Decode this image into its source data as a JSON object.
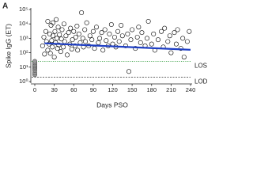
{
  "chart_data": {
    "type": "scatter",
    "panel_label": "A",
    "xlabel": "Days PSO",
    "ylabel": "Spike IgG (ET)",
    "xlim": [
      0,
      240
    ],
    "xticks": [
      0,
      30,
      60,
      90,
      120,
      150,
      180,
      210,
      240
    ],
    "ylim": [
      1,
      100000
    ],
    "log_y": true,
    "grid": false,
    "yticks": [
      {
        "value": 1,
        "label": "10⁰"
      },
      {
        "value": 10,
        "label": "10¹"
      },
      {
        "value": 100,
        "label": "10²"
      },
      {
        "value": 1000,
        "label": "10³"
      },
      {
        "value": 10000,
        "label": "10⁴"
      },
      {
        "value": 100000,
        "label": "10⁵"
      }
    ],
    "series": [
      {
        "color": "#999999",
        "marker": "filled",
        "x": [
          0,
          0,
          0,
          0,
          0,
          0,
          0,
          0,
          0
        ],
        "values": [
          3,
          4,
          6,
          8,
          10,
          12,
          15,
          20,
          25
        ]
      },
      {
        "color": "#000000",
        "marker": "open",
        "x": [
          12,
          14,
          15,
          17,
          18,
          20,
          20,
          22,
          23,
          24,
          25,
          26,
          27,
          28,
          28,
          30,
          31,
          32,
          33,
          34,
          35,
          36,
          37,
          38,
          40,
          41,
          42,
          44,
          45,
          46,
          48,
          50,
          52,
          54,
          55,
          57,
          58,
          60,
          62,
          63,
          65,
          66,
          68,
          70,
          72,
          74,
          75,
          77,
          78,
          80,
          83,
          85,
          88,
          90,
          92,
          95,
          98,
          100,
          103,
          105,
          108,
          110,
          113,
          115,
          118,
          120,
          123,
          125,
          128,
          130,
          133,
          135,
          140,
          143,
          145,
          148,
          150,
          155,
          158,
          160,
          163,
          165,
          170,
          173,
          175,
          180,
          183,
          185,
          190,
          195,
          198,
          200,
          205,
          208,
          210,
          215,
          218,
          220,
          225,
          228,
          230,
          235,
          238
        ],
        "values": [
          300,
          1200,
          80,
          3000,
          600,
          150,
          15000,
          400,
          2000,
          90,
          8000,
          700,
          250,
          12000,
          1500,
          50,
          3000,
          500,
          20000,
          1000,
          200,
          6000,
          350,
          1800,
          120,
          900,
          4000,
          250,
          10000,
          600,
          1500,
          70,
          2500,
          400,
          5000,
          180,
          800,
          3000,
          300,
          1200,
          7000,
          150,
          2000,
          500,
          60000,
          1000,
          250,
          4000,
          600,
          12000,
          300,
          1500,
          800,
          3000,
          200,
          6000,
          500,
          1000,
          2500,
          150,
          4000,
          700,
          300,
          2000,
          9000,
          400,
          1200,
          250,
          3000,
          600,
          8000,
          1500,
          300,
          2000,
          5,
          800,
          4000,
          200,
          1200,
          6000,
          500,
          2500,
          300,
          1000,
          15000,
          400,
          2000,
          150,
          800,
          3000,
          250,
          5000,
          600,
          1500,
          100,
          2500,
          400,
          4000,
          200,
          1000,
          50,
          600,
          3000
        ]
      }
    ],
    "trend": {
      "color": "#1f3fc4",
      "x": [
        15,
        240
      ],
      "values": [
        450,
        160
      ]
    },
    "reference_lines": [
      {
        "label": "LOS",
        "value": 25,
        "color": "#2e9b3a",
        "dash": "1.2 1.5"
      },
      {
        "label": "LOD",
        "value": 2,
        "color": "#333333",
        "dash": "2 1.5"
      }
    ]
  }
}
